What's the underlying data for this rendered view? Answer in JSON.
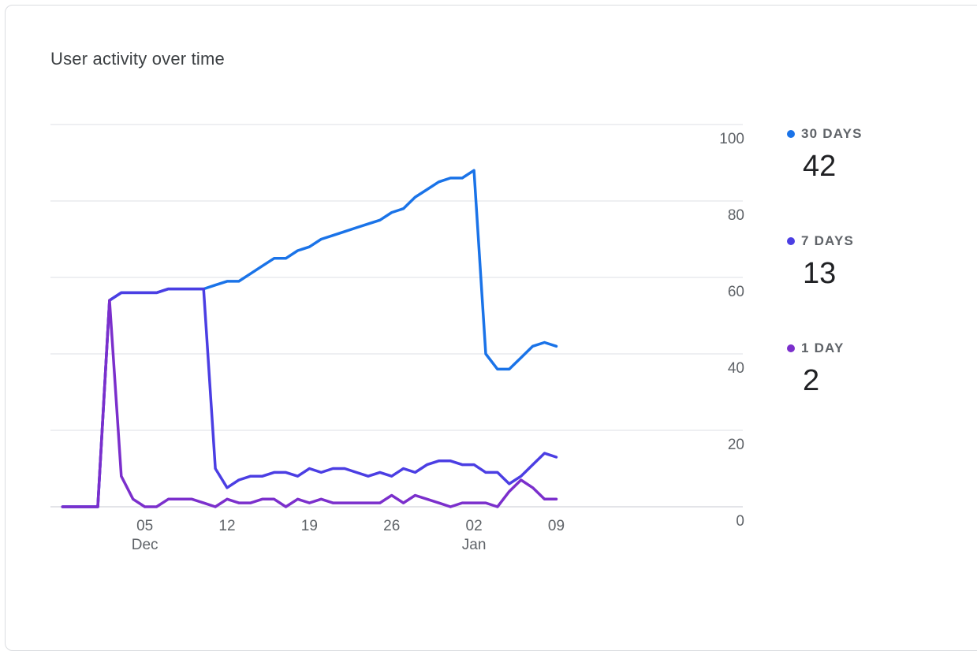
{
  "card": {
    "title": "User activity over time"
  },
  "chart_data": {
    "type": "line",
    "title": "User activity over time",
    "xlabel": "",
    "ylabel": "",
    "ylim": [
      0,
      100
    ],
    "y_ticks": [
      0,
      20,
      40,
      60,
      80,
      100
    ],
    "y_axis_position": "right",
    "grid": true,
    "legend_position": "right",
    "x_ticks": [
      {
        "day": 3,
        "label": "05",
        "sublabel": "Dec"
      },
      {
        "day": 10,
        "label": "12",
        "sublabel": ""
      },
      {
        "day": 17,
        "label": "19",
        "sublabel": ""
      },
      {
        "day": 24,
        "label": "26",
        "sublabel": ""
      },
      {
        "day": 31,
        "label": "02",
        "sublabel": "Jan"
      },
      {
        "day": 38,
        "label": "09",
        "sublabel": ""
      }
    ],
    "x_days": [
      -4,
      -3,
      -2,
      -1,
      0,
      1,
      2,
      3,
      4,
      5,
      6,
      7,
      8,
      9,
      10,
      11,
      12,
      13,
      14,
      15,
      16,
      17,
      18,
      19,
      20,
      21,
      22,
      23,
      24,
      25,
      26,
      27,
      28,
      29,
      30,
      31,
      32,
      33,
      34,
      35,
      36,
      37,
      38,
      39
    ],
    "series": [
      {
        "name": "30 DAYS",
        "color": "#1a73e8",
        "latest": "42",
        "values": [
          0,
          0,
          0,
          0,
          54,
          56,
          56,
          56,
          56,
          57,
          57,
          57,
          57,
          58,
          59,
          59,
          61,
          63,
          65,
          65,
          67,
          68,
          70,
          71,
          72,
          73,
          74,
          75,
          77,
          78,
          81,
          83,
          85,
          86,
          86,
          88,
          40,
          36,
          36,
          39,
          42,
          43,
          42,
          null
        ]
      },
      {
        "name": "7 DAYS",
        "color": "#4b3ee3",
        "latest": "13",
        "values": [
          0,
          0,
          0,
          0,
          54,
          56,
          56,
          56,
          56,
          57,
          57,
          57,
          57,
          10,
          5,
          7,
          8,
          8,
          9,
          9,
          8,
          10,
          9,
          10,
          10,
          9,
          8,
          9,
          8,
          10,
          9,
          11,
          12,
          12,
          11,
          11,
          9,
          9,
          6,
          8,
          11,
          14,
          13,
          null
        ]
      },
      {
        "name": "1 DAY",
        "color": "#7b2fcc",
        "latest": "2",
        "values": [
          0,
          0,
          0,
          0,
          54,
          8,
          2,
          0,
          0,
          2,
          2,
          2,
          1,
          0,
          2,
          1,
          1,
          2,
          2,
          0,
          2,
          1,
          2,
          1,
          1,
          1,
          1,
          1,
          3,
          1,
          3,
          2,
          1,
          0,
          1,
          1,
          1,
          0,
          4,
          7,
          5,
          2,
          2,
          null
        ]
      }
    ]
  }
}
